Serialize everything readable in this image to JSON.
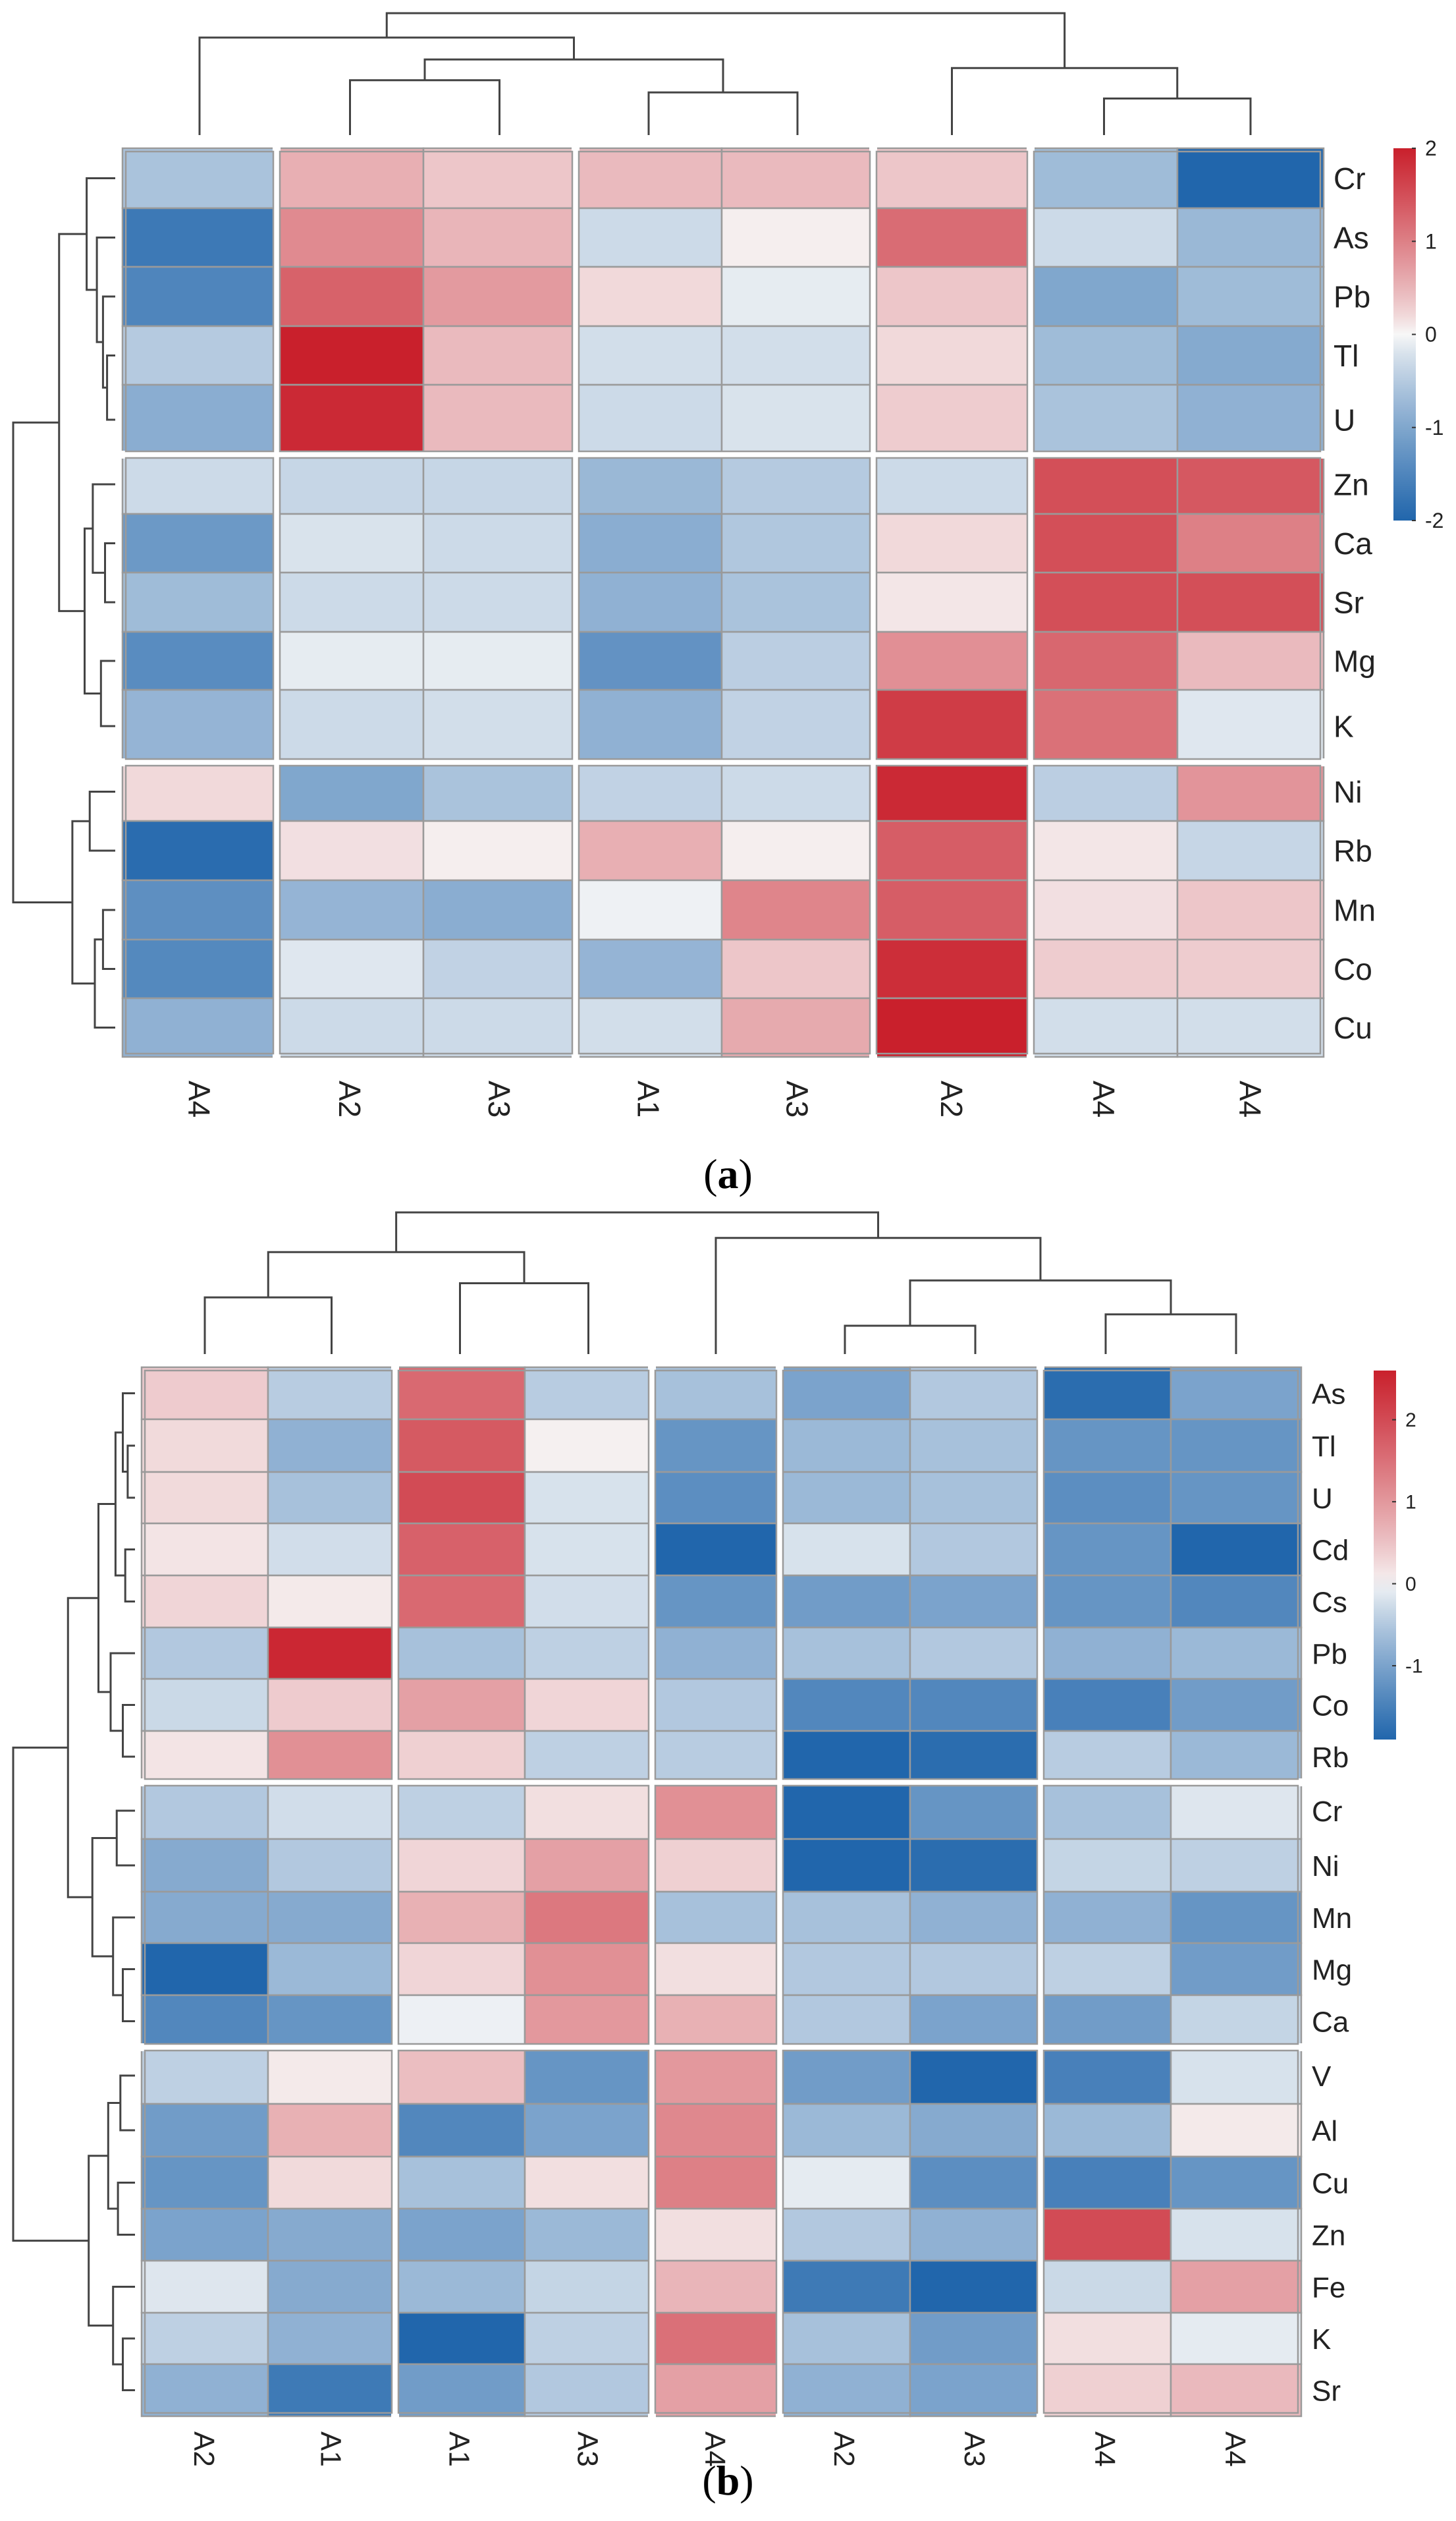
{
  "chart_data": [
    {
      "type": "heatmap",
      "panel_label": "a",
      "columns": [
        "A4",
        "A2",
        "A3",
        "A1",
        "A3",
        "A2",
        "A4",
        "A4"
      ],
      "rows": [
        "Cr",
        "As",
        "Pb",
        "Tl",
        "U",
        "Zn",
        "Ca",
        "Sr",
        "Mg",
        "K",
        "Ni",
        "Rb",
        "Mn",
        "Co",
        "Cu"
      ],
      "values": [
        [
          -0.6,
          0.55,
          0.35,
          0.45,
          0.45,
          0.35,
          -0.7,
          -2.0
        ],
        [
          -1.7,
          0.9,
          0.5,
          -0.3,
          0.05,
          1.2,
          -0.3,
          -0.75
        ],
        [
          -1.5,
          1.3,
          0.75,
          0.2,
          -0.1,
          0.35,
          -1.0,
          -0.7
        ],
        [
          -0.5,
          2.2,
          0.45,
          -0.25,
          -0.25,
          0.2,
          -0.7,
          -0.95
        ],
        [
          -0.9,
          1.9,
          0.45,
          -0.3,
          -0.2,
          0.3,
          -0.6,
          -0.85
        ],
        [
          -0.3,
          -0.35,
          -0.35,
          -0.75,
          -0.5,
          -0.3,
          1.5,
          1.4
        ],
        [
          -1.2,
          -0.2,
          -0.3,
          -0.9,
          -0.55,
          0.2,
          1.5,
          1.0
        ],
        [
          -0.7,
          -0.3,
          -0.3,
          -0.85,
          -0.6,
          0.1,
          1.5,
          1.5
        ],
        [
          -1.4,
          -0.1,
          -0.1,
          -1.3,
          -0.45,
          0.85,
          1.25,
          0.45
        ],
        [
          -0.8,
          -0.3,
          -0.25,
          -0.85,
          -0.4,
          1.7,
          1.15,
          -0.15
        ],
        [
          0.2,
          -1.0,
          -0.6,
          -0.4,
          -0.3,
          1.9,
          -0.45,
          0.8
        ],
        [
          -1.9,
          0.15,
          0.05,
          0.55,
          0.05,
          1.35,
          0.1,
          -0.35
        ],
        [
          -1.35,
          -0.8,
          -0.9,
          -0.05,
          0.95,
          1.35,
          0.15,
          0.35
        ],
        [
          -1.45,
          -0.15,
          -0.4,
          -0.8,
          0.35,
          1.85,
          0.3,
          0.3
        ],
        [
          -0.85,
          -0.3,
          -0.3,
          -0.25,
          0.6,
          2.2,
          -0.25,
          -0.25
        ]
      ],
      "row_groups": [
        [
          0,
          4
        ],
        [
          5,
          9
        ],
        [
          10,
          14
        ]
      ],
      "col_groups": [
        [
          0,
          0
        ],
        [
          1,
          2
        ],
        [
          3,
          4
        ],
        [
          5,
          5
        ],
        [
          6,
          7
        ]
      ],
      "colorbar": {
        "min": -2,
        "max": 2,
        "ticks": [
          2,
          1,
          0,
          -1,
          -2
        ]
      },
      "colors": {
        "low": "#2166ac",
        "mid": "#f7f7f7",
        "high": "#c9202c"
      }
    },
    {
      "type": "heatmap",
      "panel_label": "b",
      "columns": [
        "A2",
        "A1",
        "A1",
        "A3",
        "A4",
        "A2",
        "A3",
        "A4",
        "A4"
      ],
      "rows": [
        "As",
        "Tl",
        "U",
        "Cd",
        "Cs",
        "Pb",
        "Co",
        "Rb",
        "Cr",
        "Ni",
        "Mn",
        "Mg",
        "Ca",
        "V",
        "Al",
        "Cu",
        "Zn",
        "Fe",
        "K",
        "Sr"
      ],
      "values": [
        [
          0.4,
          -0.45,
          1.6,
          -0.45,
          -0.6,
          -1.0,
          -0.5,
          -1.8,
          -1.0
        ],
        [
          0.25,
          -0.8,
          1.8,
          0.05,
          -1.2,
          -0.7,
          -0.6,
          -1.2,
          -1.2
        ],
        [
          0.25,
          -0.6,
          2.0,
          -0.2,
          -1.3,
          -0.7,
          -0.6,
          -1.3,
          -1.2
        ],
        [
          0.15,
          -0.25,
          1.7,
          -0.2,
          -1.9,
          -0.2,
          -0.5,
          -1.2,
          -1.9
        ],
        [
          0.3,
          0.1,
          1.6,
          -0.25,
          -1.2,
          -1.1,
          -1.0,
          -1.2,
          -1.4
        ],
        [
          -0.5,
          2.5,
          -0.6,
          -0.4,
          -0.8,
          -0.6,
          -0.5,
          -0.8,
          -0.7
        ],
        [
          -0.3,
          0.4,
          0.9,
          0.3,
          -0.5,
          -1.4,
          -1.4,
          -1.5,
          -1.1
        ],
        [
          0.15,
          1.1,
          0.35,
          -0.4,
          -0.45,
          -1.9,
          -1.8,
          -0.45,
          -0.7
        ],
        [
          -0.5,
          -0.25,
          -0.4,
          0.2,
          1.1,
          -2.1,
          -1.2,
          -0.6,
          -0.15
        ],
        [
          -0.9,
          -0.5,
          0.3,
          0.9,
          0.35,
          -1.9,
          -1.8,
          -0.35,
          -0.4
        ],
        [
          -0.9,
          -0.9,
          0.7,
          1.4,
          -0.6,
          -0.6,
          -0.8,
          -0.8,
          -1.2
        ],
        [
          -2.0,
          -0.7,
          0.3,
          1.1,
          0.2,
          -0.5,
          -0.5,
          -0.4,
          -1.1
        ],
        [
          -1.4,
          -1.2,
          -0.05,
          1.0,
          0.7,
          -0.5,
          -1.0,
          -1.1,
          -0.35
        ],
        [
          -0.4,
          0.1,
          0.55,
          -1.2,
          1.0,
          -1.1,
          -1.9,
          -1.5,
          -0.2
        ],
        [
          -1.1,
          0.7,
          -1.4,
          -1.0,
          1.2,
          -0.7,
          -0.9,
          -0.7,
          0.1
        ],
        [
          -1.2,
          0.25,
          -0.6,
          0.2,
          1.3,
          -0.1,
          -1.3,
          -1.5,
          -1.2
        ],
        [
          -1.0,
          -0.9,
          -1.0,
          -0.7,
          0.2,
          -0.5,
          -0.8,
          2.0,
          -0.2
        ],
        [
          -0.15,
          -0.9,
          -0.7,
          -0.35,
          0.65,
          -1.6,
          -1.9,
          -0.3,
          0.9
        ],
        [
          -0.4,
          -0.8,
          -2.0,
          -0.4,
          1.5,
          -0.6,
          -1.1,
          0.2,
          -0.1
        ],
        [
          -0.8,
          -1.6,
          -1.1,
          -0.5,
          0.9,
          -0.8,
          -1.0,
          0.35,
          0.6
        ]
      ],
      "row_groups": [
        [
          0,
          7
        ],
        [
          8,
          12
        ],
        [
          13,
          19
        ]
      ],
      "col_groups": [
        [
          0,
          1
        ],
        [
          2,
          3
        ],
        [
          4,
          4
        ],
        [
          5,
          6
        ],
        [
          7,
          8
        ]
      ],
      "colorbar": {
        "min": -1.9,
        "max": 2.6,
        "ticks": [
          2,
          1,
          0,
          -1
        ]
      },
      "colors": {
        "low": "#2166ac",
        "mid": "#f7f7f7",
        "high": "#c9202c"
      }
    }
  ],
  "captions": [
    {
      "open": "(",
      "letter": "a",
      "close": ")"
    },
    {
      "open": "(",
      "letter": "b",
      "close": ")"
    }
  ]
}
